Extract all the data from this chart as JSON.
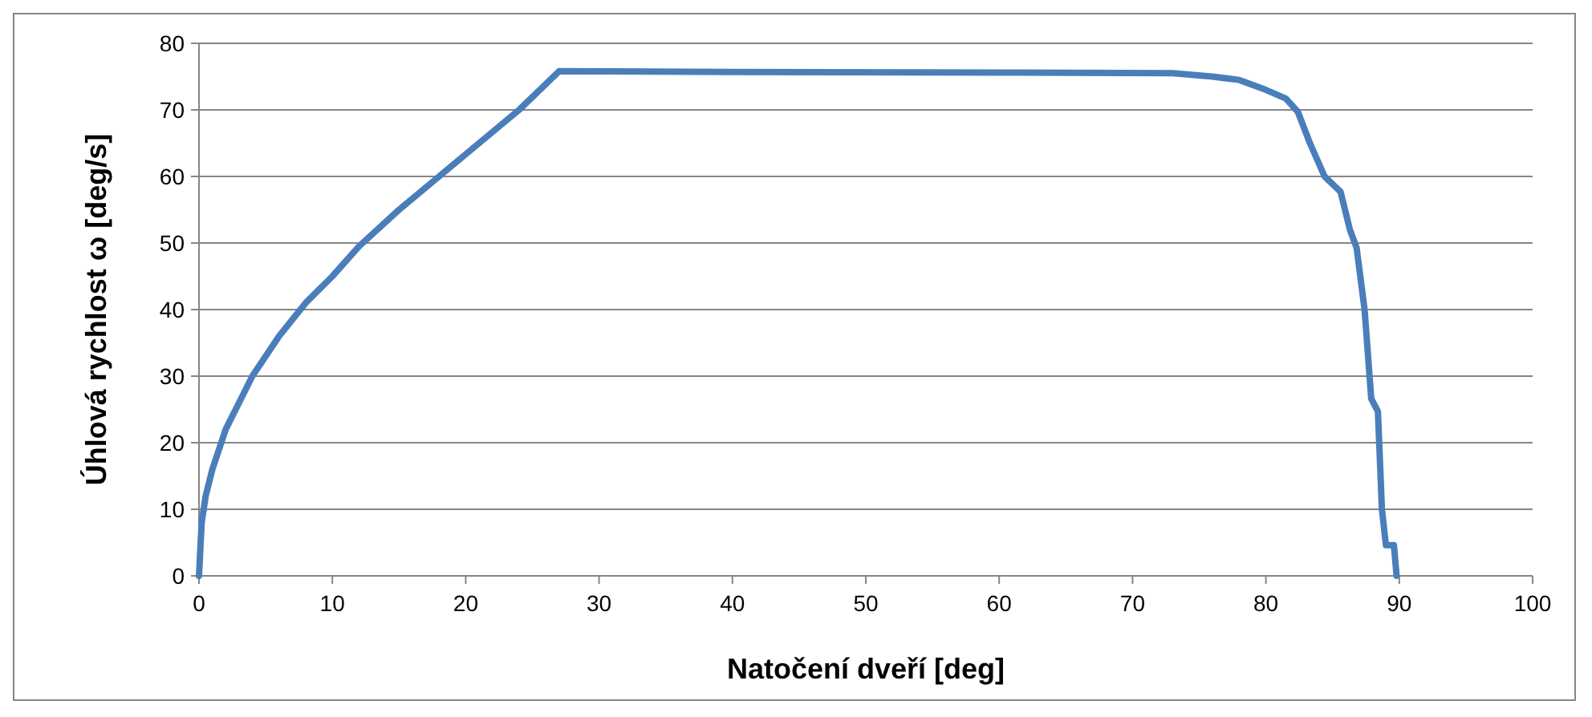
{
  "chart_data": {
    "type": "line",
    "xlabel": "Natočení dveří [deg]",
    "ylabel": "Úhlová rychlost ω [deg/s]",
    "xlim": [
      0,
      100
    ],
    "xticks": [
      0,
      10,
      20,
      30,
      40,
      50,
      60,
      70,
      80,
      90,
      100
    ],
    "ylim": [
      0,
      80
    ],
    "yticks": [
      0,
      10,
      20,
      30,
      40,
      50,
      60,
      70,
      80
    ],
    "grid": "y",
    "marker": "none",
    "line_style": "solid",
    "series": [
      {
        "color": "#4a7ebb",
        "x": [
          0,
          0.2,
          0.5,
          1,
          2,
          3,
          4,
          6,
          8,
          10,
          12,
          15,
          18,
          21,
          24,
          27,
          40,
          60,
          73,
          76,
          78,
          80,
          81.5,
          82.4,
          83.3,
          84.4,
          85.6,
          86.3,
          86.8,
          87.4,
          87.9,
          88.4,
          88.7,
          89,
          89.6,
          89.8
        ],
        "values": [
          0,
          8,
          12,
          16,
          22,
          26,
          30,
          36,
          41,
          45,
          49.5,
          55,
          60,
          65,
          70,
          75.8,
          75.7,
          75.6,
          75.5,
          75,
          74.5,
          73,
          71.7,
          69.7,
          65,
          60,
          57.7,
          52,
          49.3,
          40,
          26.6,
          24.7,
          10,
          4.6,
          4.6,
          0
        ]
      }
    ]
  }
}
